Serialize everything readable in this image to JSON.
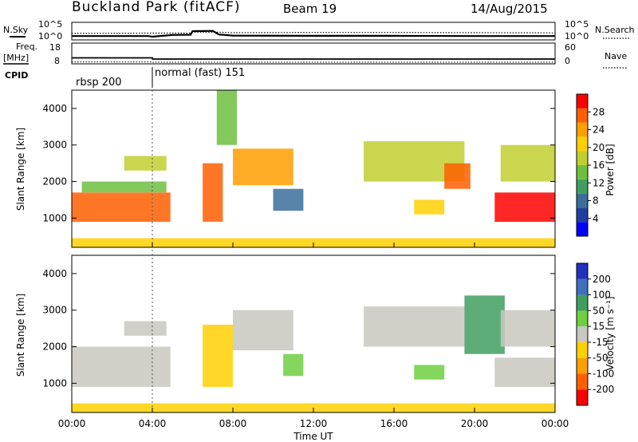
{
  "header": {
    "station": "Buckland Park (fitACF)",
    "beam": "Beam 19",
    "date": "14/Aug/2015"
  },
  "noise_panel": {
    "left_label": "N.Sky",
    "right_label": "N.Search",
    "y_ticks_left": [
      "10^5",
      "10^0"
    ],
    "y_ticks_right": [
      "10^5",
      "10^0"
    ]
  },
  "freq_panel": {
    "left_label_line1": "Freq.",
    "left_label_line2": "[MHz]",
    "right_label": "Nave",
    "y_ticks_left": [
      "18",
      "8"
    ],
    "y_ticks_right": [
      "60",
      "0"
    ]
  },
  "cpid_panel": {
    "label": "CPID",
    "segments": [
      "rbsp 200",
      "normal (fast) 151"
    ]
  },
  "power_panel": {
    "ylabel": "Slant Range [km]",
    "y_ticks": [
      "1000",
      "2000",
      "3000",
      "4000"
    ],
    "colorbar_label": "Power [dB]",
    "colorbar_ticks": [
      "4",
      "8",
      "12",
      "16",
      "20",
      "24",
      "28"
    ],
    "colorbar_colors": [
      "#0000ff",
      "#1f3fa0",
      "#3b6f9a",
      "#3f9f5f",
      "#6fbf3f",
      "#bfcf2f",
      "#ffd000",
      "#ff9f00",
      "#ff5f00",
      "#ff0000"
    ]
  },
  "velocity_panel": {
    "ylabel": "Slant Range [km]",
    "y_ticks": [
      "1000",
      "2000",
      "3000",
      "4000"
    ],
    "colorbar_label": "Velocity [m s⁻¹]",
    "colorbar_ticks": [
      "200",
      "100",
      "50",
      "15",
      "-15",
      "-50",
      "-100",
      "-200"
    ],
    "colorbar_colors": [
      "#2030c0",
      "#3f6fbf",
      "#3f9f5f",
      "#6fcf3f",
      "#c8c8c0",
      "#ffd000",
      "#ff9f00",
      "#ff5f00",
      "#ff0000"
    ]
  },
  "x_axis": {
    "label": "Time UT",
    "ticks": [
      "00:00",
      "04:00",
      "08:00",
      "12:00",
      "16:00",
      "20:00",
      "00:00"
    ]
  },
  "chart_data": {
    "type": "heatmap",
    "title": "Buckland Park (fitACF) Beam 19 14/Aug/2015",
    "xlabel": "Time UT",
    "ylabel": "Slant Range [km]",
    "xlim": [
      0,
      24
    ],
    "ylim": [
      200,
      4500
    ],
    "noise_sky_log10": {
      "x": [
        0,
        3.8,
        4.0,
        5.0,
        5.9,
        6.0,
        7.0,
        7.3,
        8.0,
        12.0,
        16.0,
        20.0,
        24.0
      ],
      "y": [
        0.3,
        0.3,
        0.0,
        0.8,
        0.9,
        2.5,
        2.6,
        1.0,
        0.5,
        0.4,
        0.4,
        0.3,
        0.3
      ]
    },
    "noise_search_log10": {
      "x": [
        0,
        4.0,
        5.9,
        6.0,
        7.3,
        8.0,
        12.0,
        16.0,
        20.0,
        24.0
      ],
      "y": [
        1.5,
        1.6,
        1.6,
        2.0,
        2.0,
        1.8,
        1.9,
        1.9,
        1.8,
        1.7
      ]
    },
    "frequency_mhz": {
      "x": [
        0,
        4.0,
        4.01,
        24.0
      ],
      "y": [
        10.5,
        10.5,
        9.8,
        9.8
      ]
    },
    "nave": {
      "x": [
        0,
        4.0,
        4.01,
        24.0
      ],
      "y": [
        1,
        1,
        0,
        0
      ]
    },
    "cpid_segments": [
      {
        "label": "rbsp 200",
        "start": 0.0,
        "end": 4.0
      },
      {
        "label": "normal (fast) 151",
        "start": 4.0,
        "end": 24.0
      }
    ],
    "power_regions_db": [
      {
        "t0": 0.0,
        "t1": 4.9,
        "r0": 900,
        "r1": 1700,
        "value": 26
      },
      {
        "t0": 0.5,
        "t1": 4.7,
        "r0": 1700,
        "r1": 2000,
        "value": 12
      },
      {
        "t0": 2.6,
        "t1": 4.7,
        "r0": 2300,
        "r1": 2700,
        "value": 17
      },
      {
        "t0": 6.5,
        "t1": 7.5,
        "r0": 900,
        "r1": 2500,
        "value": 24
      },
      {
        "t0": 7.2,
        "t1": 8.2,
        "r0": 3000,
        "r1": 4500,
        "value": 12
      },
      {
        "t0": 8.0,
        "t1": 11.0,
        "r0": 1900,
        "r1": 2900,
        "value": 22
      },
      {
        "t0": 10.0,
        "t1": 11.5,
        "r0": 1200,
        "r1": 1800,
        "value": 8
      },
      {
        "t0": 14.5,
        "t1": 19.5,
        "r0": 2000,
        "r1": 3100,
        "value": 15
      },
      {
        "t0": 18.5,
        "t1": 19.8,
        "r0": 1800,
        "r1": 2500,
        "value": 24
      },
      {
        "t0": 17.0,
        "t1": 18.5,
        "r0": 1100,
        "r1": 1500,
        "value": 18
      },
      {
        "t0": 21.0,
        "t1": 24.0,
        "r0": 900,
        "r1": 1700,
        "value": 27
      },
      {
        "t0": 21.3,
        "t1": 24.0,
        "r0": 2000,
        "r1": 3000,
        "value": 16
      },
      {
        "t0": 0.0,
        "t1": 24.0,
        "r0": 200,
        "r1": 450,
        "value": 20
      }
    ],
    "velocity_regions_ms": [
      {
        "t0": 0.0,
        "t1": 4.9,
        "r0": 900,
        "r1": 2000,
        "value": 0
      },
      {
        "t0": 2.6,
        "t1": 4.7,
        "r0": 2300,
        "r1": 2700,
        "value": 0
      },
      {
        "t0": 6.5,
        "t1": 8.0,
        "r0": 900,
        "r1": 2600,
        "value": -40
      },
      {
        "t0": 8.0,
        "t1": 11.0,
        "r0": 1900,
        "r1": 3000,
        "value": 0
      },
      {
        "t0": 10.5,
        "t1": 11.5,
        "r0": 1200,
        "r1": 1800,
        "value": 40
      },
      {
        "t0": 14.5,
        "t1": 19.5,
        "r0": 2000,
        "r1": 3100,
        "value": 0
      },
      {
        "t0": 17.0,
        "t1": 18.5,
        "r0": 1100,
        "r1": 1500,
        "value": 40
      },
      {
        "t0": 19.5,
        "t1": 21.5,
        "r0": 1800,
        "r1": 3400,
        "value": 60
      },
      {
        "t0": 21.0,
        "t1": 24.0,
        "r0": 900,
        "r1": 1700,
        "value": 0
      },
      {
        "t0": 21.3,
        "t1": 24.0,
        "r0": 2000,
        "r1": 3000,
        "value": 0
      },
      {
        "t0": 0.0,
        "t1": 24.0,
        "r0": 200,
        "r1": 450,
        "value": -40
      }
    ]
  }
}
